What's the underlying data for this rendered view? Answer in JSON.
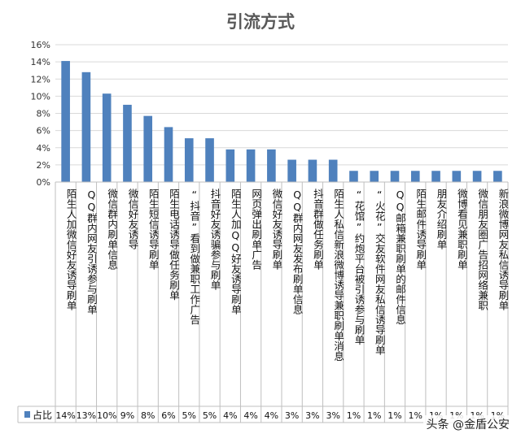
{
  "chart_data": {
    "type": "bar",
    "title": "引流方式",
    "series_name": "占比",
    "categories": [
      "陌生人加微信好友诱导刷单",
      "QQ群内网友引诱参与刷单",
      "微信群内刷单信息",
      "微信好友诱导",
      "陌生短信诱导刷单",
      "陌生电话诱导做任务刷单",
      "“抖音”看到做兼职工作广告",
      "抖音好友诱骗参与刷单",
      "陌生人加QQ好友诱导刷单",
      "网页弹出刷单广告",
      "微信好友诱导刷单",
      "QQ群内网友发布刷单信息",
      "抖音群做任务刷单",
      "陌生人私信新浪微博诱导兼职刷单消息",
      "“花馆”约炮平台被引诱参与刷单",
      "“火花”交友软件网友私信诱导刷单",
      "QQ邮箱兼职刷单的邮件信息",
      "陌生邮件诱导刷单",
      "朋友介绍刷单",
      "微博看见兼职刷单",
      "微信朋友圈广告招网络兼职",
      "新浪微博网友私信诱导刷单"
    ],
    "values": [
      14.1,
      12.8,
      10.3,
      9.0,
      7.7,
      6.4,
      5.1,
      5.1,
      3.8,
      3.8,
      3.8,
      2.6,
      2.6,
      2.6,
      1.3,
      1.3,
      1.3,
      1.3,
      1.3,
      1.3,
      1.3,
      1.3
    ],
    "table_labels": [
      "14%",
      "13%",
      "10%",
      "9%",
      "8%",
      "6%",
      "5%",
      "5%",
      "4%",
      "4%",
      "4%",
      "3%",
      "3%",
      "3%",
      "1%",
      "1%",
      "1%",
      "1%",
      "1%",
      "1%",
      "1%",
      "1%"
    ],
    "y_ticks": [
      "0%",
      "2%",
      "4%",
      "6%",
      "8%",
      "10%",
      "12%",
      "14%",
      "16%"
    ],
    "ylim": [
      0,
      16
    ],
    "grid": true,
    "legend": "bottom-left",
    "bar_color": "#4f81bd"
  },
  "watermark": "头条 @金盾公安"
}
